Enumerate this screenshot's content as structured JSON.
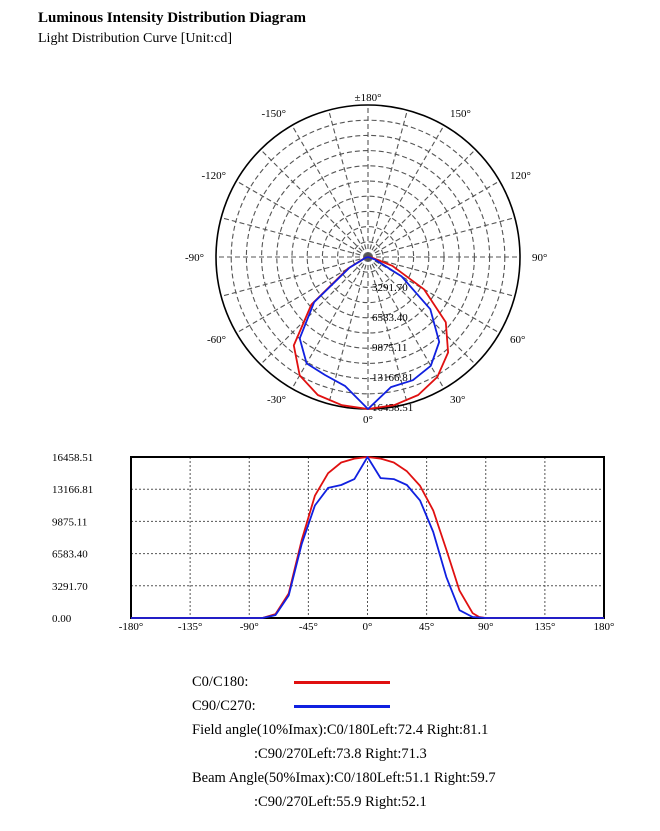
{
  "page": {
    "title": "Luminous Intensity Distribution Diagram",
    "subtitle": "Light Distribution Curve [Unit:cd]"
  },
  "colors": {
    "c0": "#e01010",
    "c90": "#1020e0",
    "grid": "#555555"
  },
  "chart_data": [
    {
      "type": "polar",
      "angle_labels": [
        "±180°",
        "150°",
        "120°",
        "90°",
        "60°",
        "30°",
        "0°",
        "-30°",
        "-60°",
        "-90°",
        "-120°",
        "-150°"
      ],
      "radial_labels": [
        "3291.70",
        "6583.40",
        "9875.11",
        "13166.81",
        "16458.51"
      ],
      "rmax": 16458.51,
      "grid": true,
      "series": [
        {
          "name": "C0/C180",
          "color": "#e01010",
          "angles": [
            -90,
            -80,
            -70,
            -60,
            -50,
            -40,
            -30,
            -20,
            -10,
            0,
            10,
            20,
            30,
            40,
            50,
            60,
            70,
            80,
            90
          ],
          "values": [
            0,
            0,
            400,
            2500,
            8000,
            12500,
            14800,
            15900,
            16300,
            16458,
            16300,
            15900,
            15000,
            13500,
            11000,
            7000,
            2800,
            500,
            0
          ]
        },
        {
          "name": "C90/C270",
          "color": "#1020e0",
          "angles": [
            -90,
            -80,
            -70,
            -60,
            -50,
            -40,
            -30,
            -20,
            -10,
            0,
            10,
            20,
            30,
            40,
            50,
            60,
            70,
            80,
            90
          ],
          "values": [
            0,
            0,
            300,
            2300,
            7600,
            11500,
            13300,
            13600,
            14200,
            16458,
            14300,
            14200,
            13600,
            12000,
            8800,
            4200,
            800,
            100,
            0
          ]
        }
      ]
    },
    {
      "type": "line",
      "x_ticks": [
        "-180°",
        "-135°",
        "-90°",
        "-45°",
        "0°",
        "45°",
        "90°",
        "135°",
        "180°"
      ],
      "y_ticks": [
        "0.00",
        "3291.70",
        "6583.40",
        "9875.11",
        "13166.81",
        "16458.51"
      ],
      "xlim": [
        -180,
        180
      ],
      "ylim": [
        0,
        16458.51
      ],
      "grid": true,
      "series": [
        {
          "name": "C0/C180",
          "color": "#e01010",
          "x": [
            -180,
            -95,
            -90,
            -80,
            -70,
            -60,
            -50,
            -40,
            -30,
            -20,
            -10,
            0,
            10,
            20,
            30,
            40,
            50,
            60,
            70,
            80,
            85,
            90,
            180
          ],
          "y": [
            0,
            0,
            0,
            0,
            400,
            2500,
            8000,
            12500,
            14800,
            15900,
            16300,
            16458,
            16300,
            15900,
            15000,
            13500,
            11000,
            7000,
            2800,
            500,
            100,
            0,
            0
          ]
        },
        {
          "name": "C90/C270",
          "color": "#1020e0",
          "x": [
            -180,
            -95,
            -90,
            -80,
            -70,
            -60,
            -50,
            -40,
            -30,
            -20,
            -10,
            0,
            10,
            20,
            30,
            40,
            50,
            60,
            70,
            80,
            90,
            180
          ],
          "y": [
            0,
            0,
            0,
            0,
            300,
            2300,
            7600,
            11500,
            13300,
            13600,
            14200,
            16458,
            14300,
            14200,
            13600,
            12000,
            8800,
            4200,
            800,
            100,
            0,
            0
          ]
        }
      ]
    }
  ],
  "legend": {
    "c0_label": "C0/C180:",
    "c90_label": "C90/C270:",
    "field_line1": "Field angle(10%Imax):C0/180Left:72.4 Right:81.1",
    "field_line2": ":C90/270Left:73.8 Right:71.3",
    "beam_line1": "Beam Angle(50%Imax):C0/180Left:51.1 Right:59.7",
    "beam_line2": ":C90/270Left:55.9 Right:52.1"
  }
}
